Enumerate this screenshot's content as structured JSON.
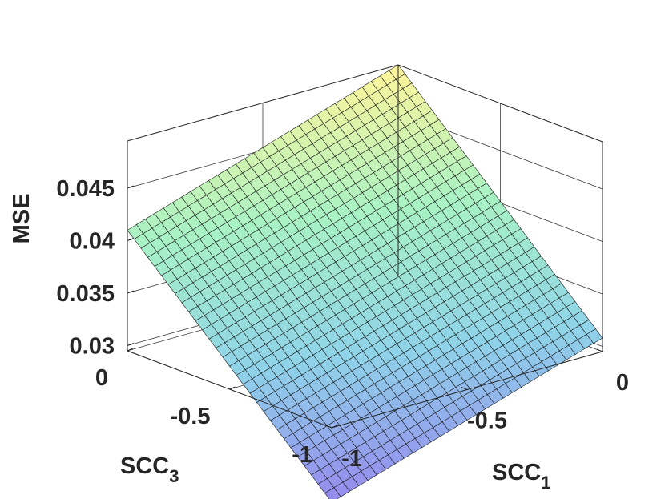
{
  "chart_data": {
    "type": "surface3d",
    "title": "",
    "xlabel": "SCC",
    "xlabel_sub": "1",
    "ylabel": "SCC",
    "ylabel_sub": "3",
    "zlabel": "MSE",
    "xlim": [
      -1,
      0
    ],
    "ylim": [
      -1,
      0
    ],
    "zlim": [
      0.0295,
      0.0495
    ],
    "x_ticks": [
      {
        "value": -1,
        "label": "-1"
      },
      {
        "value": -0.5,
        "label": "-0.5"
      },
      {
        "value": 0,
        "label": "0"
      }
    ],
    "y_ticks": [
      {
        "value": -1,
        "label": "-1"
      },
      {
        "value": -0.5,
        "label": "-0.5"
      },
      {
        "value": 0,
        "label": "0"
      }
    ],
    "z_ticks": [
      {
        "value": 0.03,
        "label": "0.03"
      },
      {
        "value": 0.035,
        "label": "0.035"
      },
      {
        "value": 0.04,
        "label": "0.04"
      },
      {
        "value": 0.045,
        "label": "0.045"
      }
    ],
    "corners": [
      {
        "x": 0,
        "y": 0,
        "z": 0.0495
      },
      {
        "x": -1,
        "y": 0,
        "z": 0.041
      },
      {
        "x": 0,
        "y": -1,
        "z": 0.0308
      },
      {
        "x": -1,
        "y": -1,
        "z": 0.0224
      }
    ],
    "grid_resolution": 30,
    "grid": "on",
    "colormap": [
      "#9589ee",
      "#8fd3e9",
      "#a8f2c4",
      "#fff59a"
    ]
  }
}
